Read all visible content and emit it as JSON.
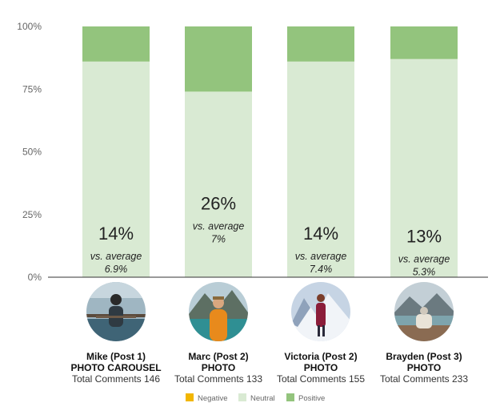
{
  "chart_data": {
    "type": "bar",
    "stacked": true,
    "y_unit": "percent",
    "ylim": [
      0,
      100
    ],
    "yticks": [
      "0%",
      "25%",
      "50%",
      "75%",
      "100%"
    ],
    "grid": false,
    "legend_position": "bottom",
    "categories": [
      {
        "name": "Mike (Post 1)",
        "kind": "PHOTO CAROUSEL",
        "total": "Total Comments 146"
      },
      {
        "name": "Marc (Post 2)",
        "kind": "PHOTO",
        "total": "Total Comments 133"
      },
      {
        "name": "Victoria (Post 2)",
        "kind": "PHOTO",
        "total": "Total Comments 155"
      },
      {
        "name": "Brayden (Post 3)",
        "kind": "PHOTO",
        "total": "Total Comments 233"
      }
    ],
    "series": [
      {
        "name": "Negative",
        "color": "#f2b600",
        "values": [
          0,
          0,
          0,
          0
        ]
      },
      {
        "name": "Neutral",
        "color": "#d9ead3",
        "values": [
          86,
          74,
          86,
          87
        ]
      },
      {
        "name": "Positive",
        "color": "#93c47d",
        "values": [
          14,
          26,
          14,
          13
        ]
      }
    ],
    "data_labels": [
      "14%",
      "26%",
      "14%",
      "13%"
    ],
    "avg_prefix": "vs. average",
    "averages": [
      "6.9%",
      "7%",
      "7.4%",
      "5.3%"
    ],
    "avatar_icons": [
      "mike-photo-icon",
      "marc-photo-icon",
      "victoria-photo-icon",
      "brayden-photo-icon"
    ]
  }
}
